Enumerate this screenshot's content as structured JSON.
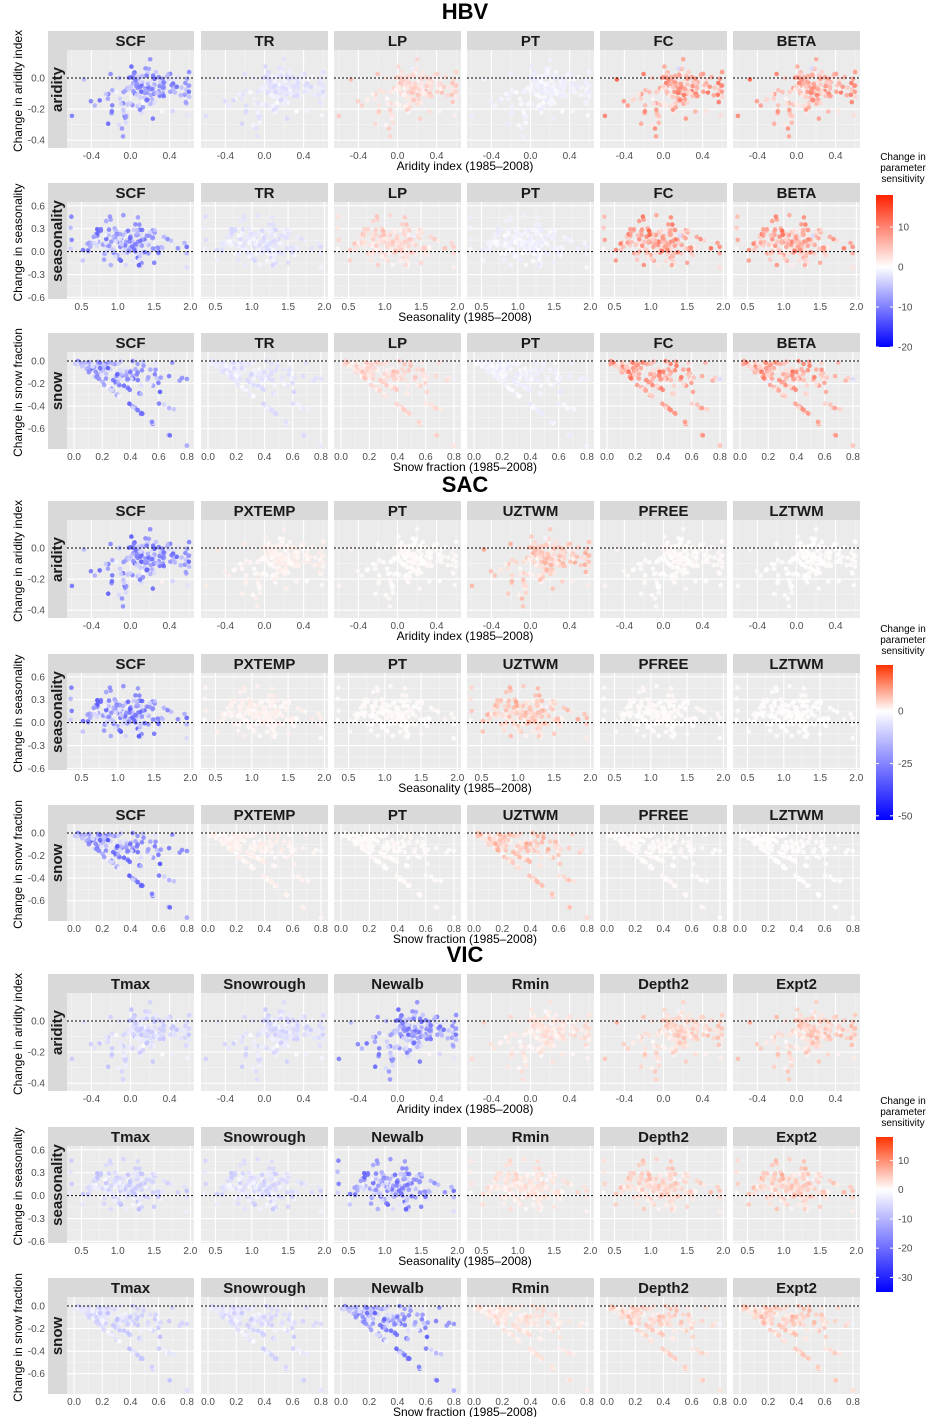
{
  "chart_data": {
    "type": "scatter",
    "models": [
      {
        "title": "HBV",
        "params": [
          "SCF",
          "TR",
          "LP",
          "PT",
          "FC",
          "BETA"
        ],
        "colorbar": {
          "title": "Change in\nparameter\nsensitivity",
          "min": -20,
          "max": 18,
          "ticks": [
            10,
            0,
            -10,
            -20
          ],
          "low_color": "#0000ff",
          "mid_color": "#ffffff",
          "high_color": "#ff2200"
        },
        "sensitivity_scale": {
          "SCF": -0.75,
          "TR": -0.2,
          "LP": 0.35,
          "PT": -0.1,
          "FC": 0.8,
          "BETA": 0.75
        }
      },
      {
        "title": "SAC",
        "params": [
          "SCF",
          "PXTEMP",
          "PT",
          "UZTWM",
          "PFREE",
          "LZTWM"
        ],
        "colorbar": {
          "title": "Change in\nparameter\nsensitivity",
          "min": -52,
          "max": 22,
          "ticks": [
            0,
            -25,
            -50
          ],
          "low_color": "#0000ff",
          "mid_color": "#ffffff",
          "high_color": "#ff3300"
        },
        "sensitivity_scale": {
          "SCF": -0.8,
          "PXTEMP": 0.12,
          "PT": 0.05,
          "UZTWM": 0.5,
          "PFREE": 0.05,
          "LZTWM": 0.03
        }
      },
      {
        "title": "VIC",
        "params": [
          "Tmax",
          "Snowrough",
          "Newalb",
          "Rmin",
          "Depth2",
          "Expt2"
        ],
        "colorbar": {
          "title": "Change in\nparameter\nsensitivity",
          "min": -35,
          "max": 18,
          "ticks": [
            10,
            0,
            -10,
            -20,
            -30
          ],
          "low_color": "#0000ff",
          "mid_color": "#ffffff",
          "high_color": "#ff3300"
        },
        "sensitivity_scale": {
          "Tmax": -0.3,
          "Snowrough": -0.25,
          "Newalb": -0.75,
          "Rmin": 0.25,
          "Depth2": 0.4,
          "Expt2": 0.45
        }
      }
    ],
    "rows": [
      {
        "strip": "aridity",
        "ylabel": "Change in aridity index",
        "xlabel": "Aridity index (1985–2008)",
        "xlim": [
          -0.65,
          0.65
        ],
        "ylim": [
          -0.45,
          0.18
        ],
        "xticks": [
          -0.4,
          0.0,
          0.4
        ],
        "xtick_labels": [
          "-0.4",
          "0.0",
          "0.4"
        ],
        "yticks": [
          0.0,
          -0.2,
          -0.4
        ],
        "ytick_labels": [
          "0.0",
          "-0.2",
          "-0.4"
        ],
        "hline": 0
      },
      {
        "strip": "seasonality",
        "ylabel": "Change in seasonality",
        "xlabel": "Seasonality (1985–2008)",
        "xlim": [
          0.3,
          2.05
        ],
        "ylim": [
          -0.62,
          0.65
        ],
        "xticks": [
          0.5,
          1.0,
          1.5,
          2.0
        ],
        "xtick_labels": [
          "0.5",
          "1.0",
          "1.5",
          "2.0"
        ],
        "yticks": [
          0.6,
          0.3,
          0.0,
          -0.3,
          -0.6
        ],
        "ytick_labels": [
          "0.6",
          "0.3",
          "0.0",
          "-0.3",
          "-0.6"
        ],
        "hline": 0
      },
      {
        "strip": "snow",
        "ylabel": "Change in snow fraction",
        "xlabel": "Snow fraction (1985–2008)",
        "xlim": [
          -0.05,
          0.85
        ],
        "ylim": [
          -0.78,
          0.08
        ],
        "xticks": [
          0.0,
          0.2,
          0.4,
          0.6,
          0.8
        ],
        "xtick_labels": [
          "0.0",
          "0.2",
          "0.4",
          "0.6",
          "0.8"
        ],
        "yticks": [
          0.0,
          -0.2,
          -0.4,
          -0.6
        ],
        "ytick_labels": [
          "0.0",
          "-0.2",
          "-0.4",
          "-0.6"
        ],
        "hline": 0
      }
    ],
    "grid": true,
    "legend_position": "right",
    "n_points_per_panel": 160
  }
}
